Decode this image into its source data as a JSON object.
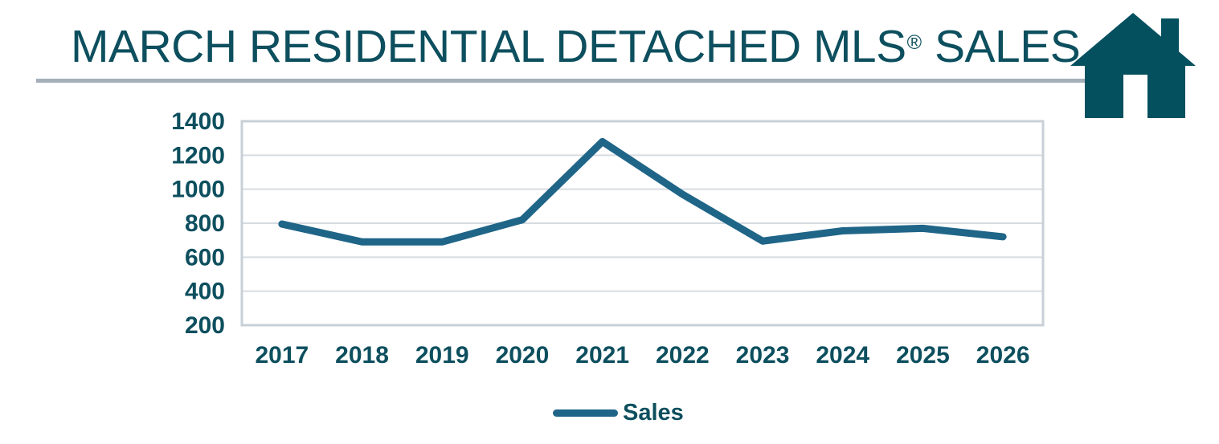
{
  "header": {
    "title_text": "MARCH RESIDENTIAL DETACHED MLS",
    "title_reg": "®",
    "title_suffix": " SALES"
  },
  "icons": {
    "logo": "house-icon"
  },
  "colors": {
    "title_text": "#0d4f5e",
    "house_icon": "#04505f",
    "series_line": "#1f6588",
    "gridline": "#d6dce1",
    "plot_border": "#c8d0d7",
    "divider": "#a4afb9",
    "background": "#ffffff"
  },
  "chart_data": {
    "type": "line",
    "title": "MARCH RESIDENTIAL DETACHED MLS® SALES",
    "categories": [
      "2017",
      "2018",
      "2019",
      "2020",
      "2021",
      "2022",
      "2023",
      "2024",
      "2025",
      "2026"
    ],
    "series": [
      {
        "name": "Sales",
        "values": [
          795,
          690,
          690,
          820,
          1280,
          970,
          695,
          755,
          770,
          720
        ]
      }
    ],
    "ylim": [
      200,
      1400
    ],
    "yticks": [
      200,
      400,
      600,
      800,
      1000,
      1200,
      1400
    ],
    "xlabel": "",
    "ylabel": "",
    "grid": "horizontal",
    "legend": "Sales",
    "legend_position": "bottom"
  }
}
